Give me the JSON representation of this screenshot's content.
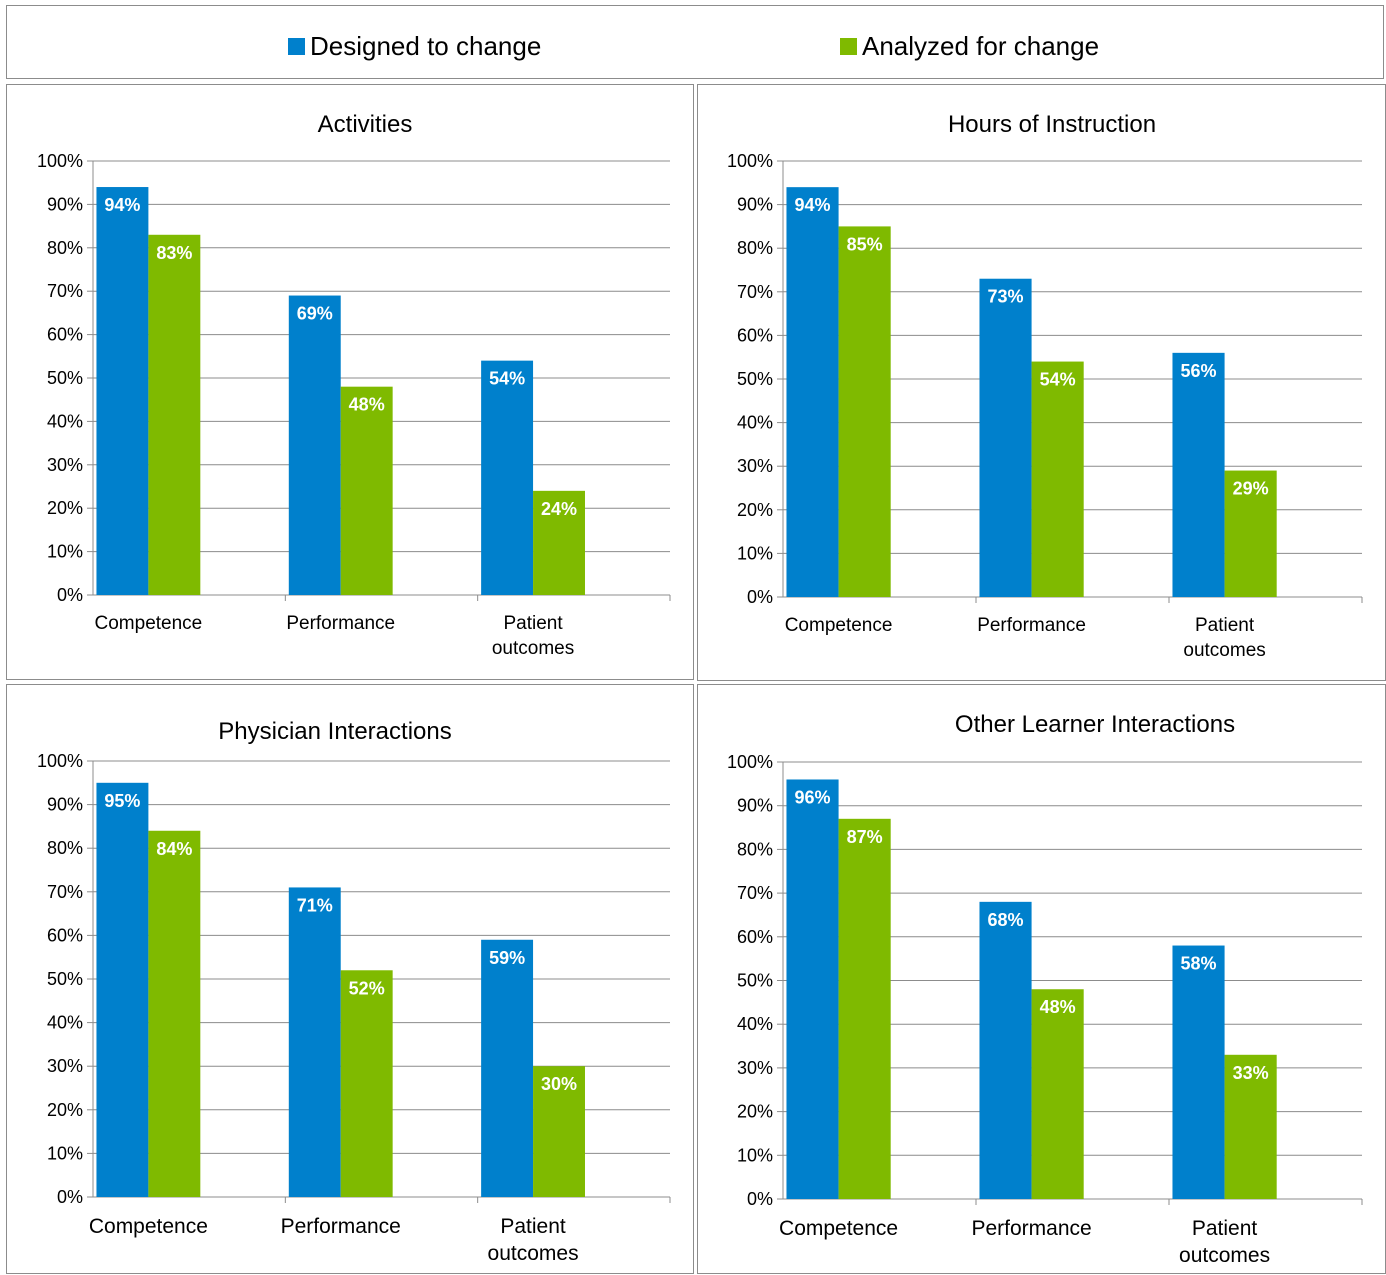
{
  "legend": {
    "items": [
      {
        "label": "Designed to change",
        "color": "#0080cc"
      },
      {
        "label": "Analyzed for change",
        "color": "#7fba00"
      }
    ]
  },
  "chart_data": [
    {
      "type": "bar",
      "title": "Activities",
      "categories": [
        "Competence",
        "Performance",
        "Patient outcomes"
      ],
      "series": [
        {
          "name": "Designed to change",
          "values": [
            94,
            69,
            54
          ],
          "labels": [
            "94%",
            "69%",
            "54%"
          ]
        },
        {
          "name": "Analyzed for change",
          "values": [
            83,
            48,
            24
          ],
          "labels": [
            "83%",
            "48%",
            "24%"
          ]
        }
      ],
      "ylim": [
        0,
        100
      ],
      "yticks": [
        "0%",
        "10%",
        "20%",
        "30%",
        "40%",
        "50%",
        "60%",
        "70%",
        "80%",
        "90%",
        "100%"
      ],
      "grid": true
    },
    {
      "type": "bar",
      "title": "Hours of Instruction",
      "categories": [
        "Competence",
        "Performance",
        "Patient outcomes"
      ],
      "series": [
        {
          "name": "Designed to change",
          "values": [
            94,
            73,
            56
          ],
          "labels": [
            "94%",
            "73%",
            "56%"
          ]
        },
        {
          "name": "Analyzed for change",
          "values": [
            85,
            54,
            29
          ],
          "labels": [
            "85%",
            "54%",
            "29%"
          ]
        }
      ],
      "ylim": [
        0,
        100
      ],
      "yticks": [
        "0%",
        "10%",
        "20%",
        "30%",
        "40%",
        "50%",
        "60%",
        "70%",
        "80%",
        "90%",
        "100%"
      ],
      "grid": true
    },
    {
      "type": "bar",
      "title": "Physician Interactions",
      "categories": [
        "Competence",
        "Performance",
        "Patient outcomes"
      ],
      "series": [
        {
          "name": "Designed to change",
          "values": [
            95,
            71,
            59
          ],
          "labels": [
            "95%",
            "71%",
            "59%"
          ]
        },
        {
          "name": "Analyzed for change",
          "values": [
            84,
            52,
            30
          ],
          "labels": [
            "84%",
            "52%",
            "30%"
          ]
        }
      ],
      "ylim": [
        0,
        100
      ],
      "yticks": [
        "0%",
        "10%",
        "20%",
        "30%",
        "40%",
        "50%",
        "60%",
        "70%",
        "80%",
        "90%",
        "100%"
      ],
      "grid": true
    },
    {
      "type": "bar",
      "title": "Other Learner Interactions",
      "categories": [
        "Competence",
        "Performance",
        "Patient outcomes"
      ],
      "series": [
        {
          "name": "Designed to change",
          "values": [
            96,
            68,
            58
          ],
          "labels": [
            "96%",
            "68%",
            "58%"
          ]
        },
        {
          "name": "Analyzed for change",
          "values": [
            87,
            48,
            33
          ],
          "labels": [
            "87%",
            "48%",
            "33%"
          ]
        }
      ],
      "ylim": [
        0,
        100
      ],
      "yticks": [
        "0%",
        "10%",
        "20%",
        "30%",
        "40%",
        "50%",
        "60%",
        "70%",
        "80%",
        "90%",
        "100%"
      ],
      "grid": true
    }
  ]
}
